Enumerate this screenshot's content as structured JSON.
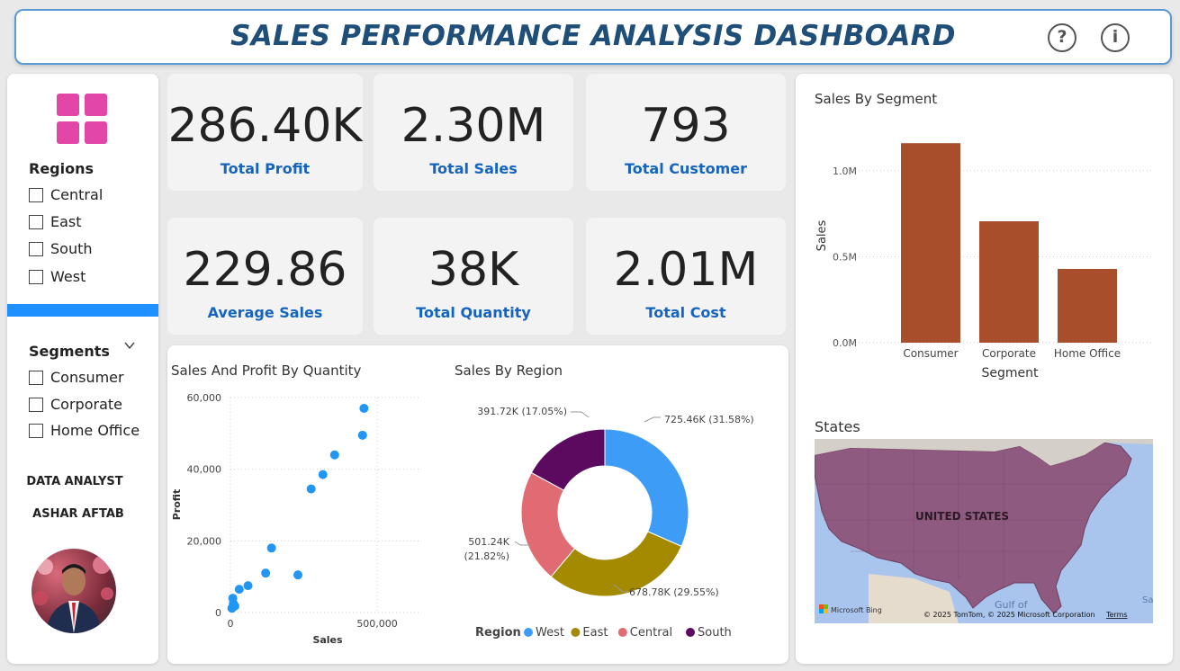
{
  "header": {
    "title": "SALES PERFORMANCE ANALYSIS DASHBOARD",
    "help_icon": "?",
    "info_icon": "i"
  },
  "sidebar": {
    "regions_title": "Regions",
    "regions": [
      "Central",
      "East",
      "South",
      "West"
    ],
    "segments_title": "Segments",
    "segments": [
      "Consumer",
      "Corporate",
      "Home Office"
    ],
    "role": "DATA ANALYST",
    "name": "ASHAR AFTAB"
  },
  "kpis": {
    "total_profit": {
      "value": "286.40K",
      "label": "Total Profit"
    },
    "total_sales": {
      "value": "2.30M",
      "label": "Total Sales"
    },
    "total_customer": {
      "value": "793",
      "label": "Total Customer"
    },
    "average_sales": {
      "value": "229.86",
      "label": "Average Sales"
    },
    "total_quantity": {
      "value": "38K",
      "label": "Total Quantity"
    },
    "total_cost": {
      "value": "2.01M",
      "label": "Total Cost"
    }
  },
  "colors": {
    "accent": "#1e90ff",
    "kpi_label": "#1565c0",
    "bar": "#a94e2a",
    "scatter": "#2196f3",
    "logo": "#e247a8"
  },
  "chart_data": [
    {
      "type": "bar",
      "title": "Sales By Segment",
      "categories": [
        "Consumer",
        "Corporate",
        "Home Office"
      ],
      "values": [
        1160000,
        706000,
        429000
      ],
      "xlabel": "Segment",
      "ylabel": "Sales",
      "yticks": [
        "0.0M",
        "0.5M",
        "1.0M"
      ],
      "ylim": [
        0,
        1250000
      ]
    },
    {
      "type": "scatter",
      "title": "Sales And Profit By Quantity",
      "xlabel": "Sales",
      "ylabel": "Profit",
      "xticks": [
        "0",
        "500,000"
      ],
      "yticks": [
        "0",
        "20,000",
        "40,000",
        "60,000"
      ],
      "xlim": [
        0,
        650000
      ],
      "ylim": [
        0,
        60000
      ],
      "points": [
        {
          "x": 5000,
          "y": 1200
        },
        {
          "x": 10000,
          "y": 2500
        },
        {
          "x": 15000,
          "y": 1800
        },
        {
          "x": 8000,
          "y": 4000
        },
        {
          "x": 30000,
          "y": 6500
        },
        {
          "x": 60000,
          "y": 7500
        },
        {
          "x": 120000,
          "y": 11000
        },
        {
          "x": 140000,
          "y": 18000
        },
        {
          "x": 230000,
          "y": 10500
        },
        {
          "x": 275000,
          "y": 34500
        },
        {
          "x": 315000,
          "y": 38500
        },
        {
          "x": 355000,
          "y": 44000
        },
        {
          "x": 450000,
          "y": 49500
        },
        {
          "x": 455000,
          "y": 57000
        }
      ]
    },
    {
      "type": "pie",
      "title": "Sales By Region",
      "legend_title": "Region",
      "slices": [
        {
          "name": "West",
          "value": 725460,
          "label": "725.46K (31.58%)",
          "color": "#3d9df6"
        },
        {
          "name": "East",
          "value": 678780,
          "label": "678.78K (29.55%)",
          "color": "#a38a00"
        },
        {
          "name": "Central",
          "value": 501240,
          "label_line1": "501.24K",
          "label_line2": "(21.82%)",
          "color": "#e06b73"
        },
        {
          "name": "South",
          "value": 391720,
          "label": "391.72K (17.05%)",
          "color": "#5b0a5f"
        }
      ]
    }
  ],
  "map": {
    "title": "States",
    "country_label": "UNITED STATES",
    "water_label": "Gulf of",
    "edge_label": "Sar",
    "attribution": "© 2025 TomTom, © 2025 Microsoft Corporation",
    "terms": "Terms",
    "provider": "Microsoft Bing"
  }
}
